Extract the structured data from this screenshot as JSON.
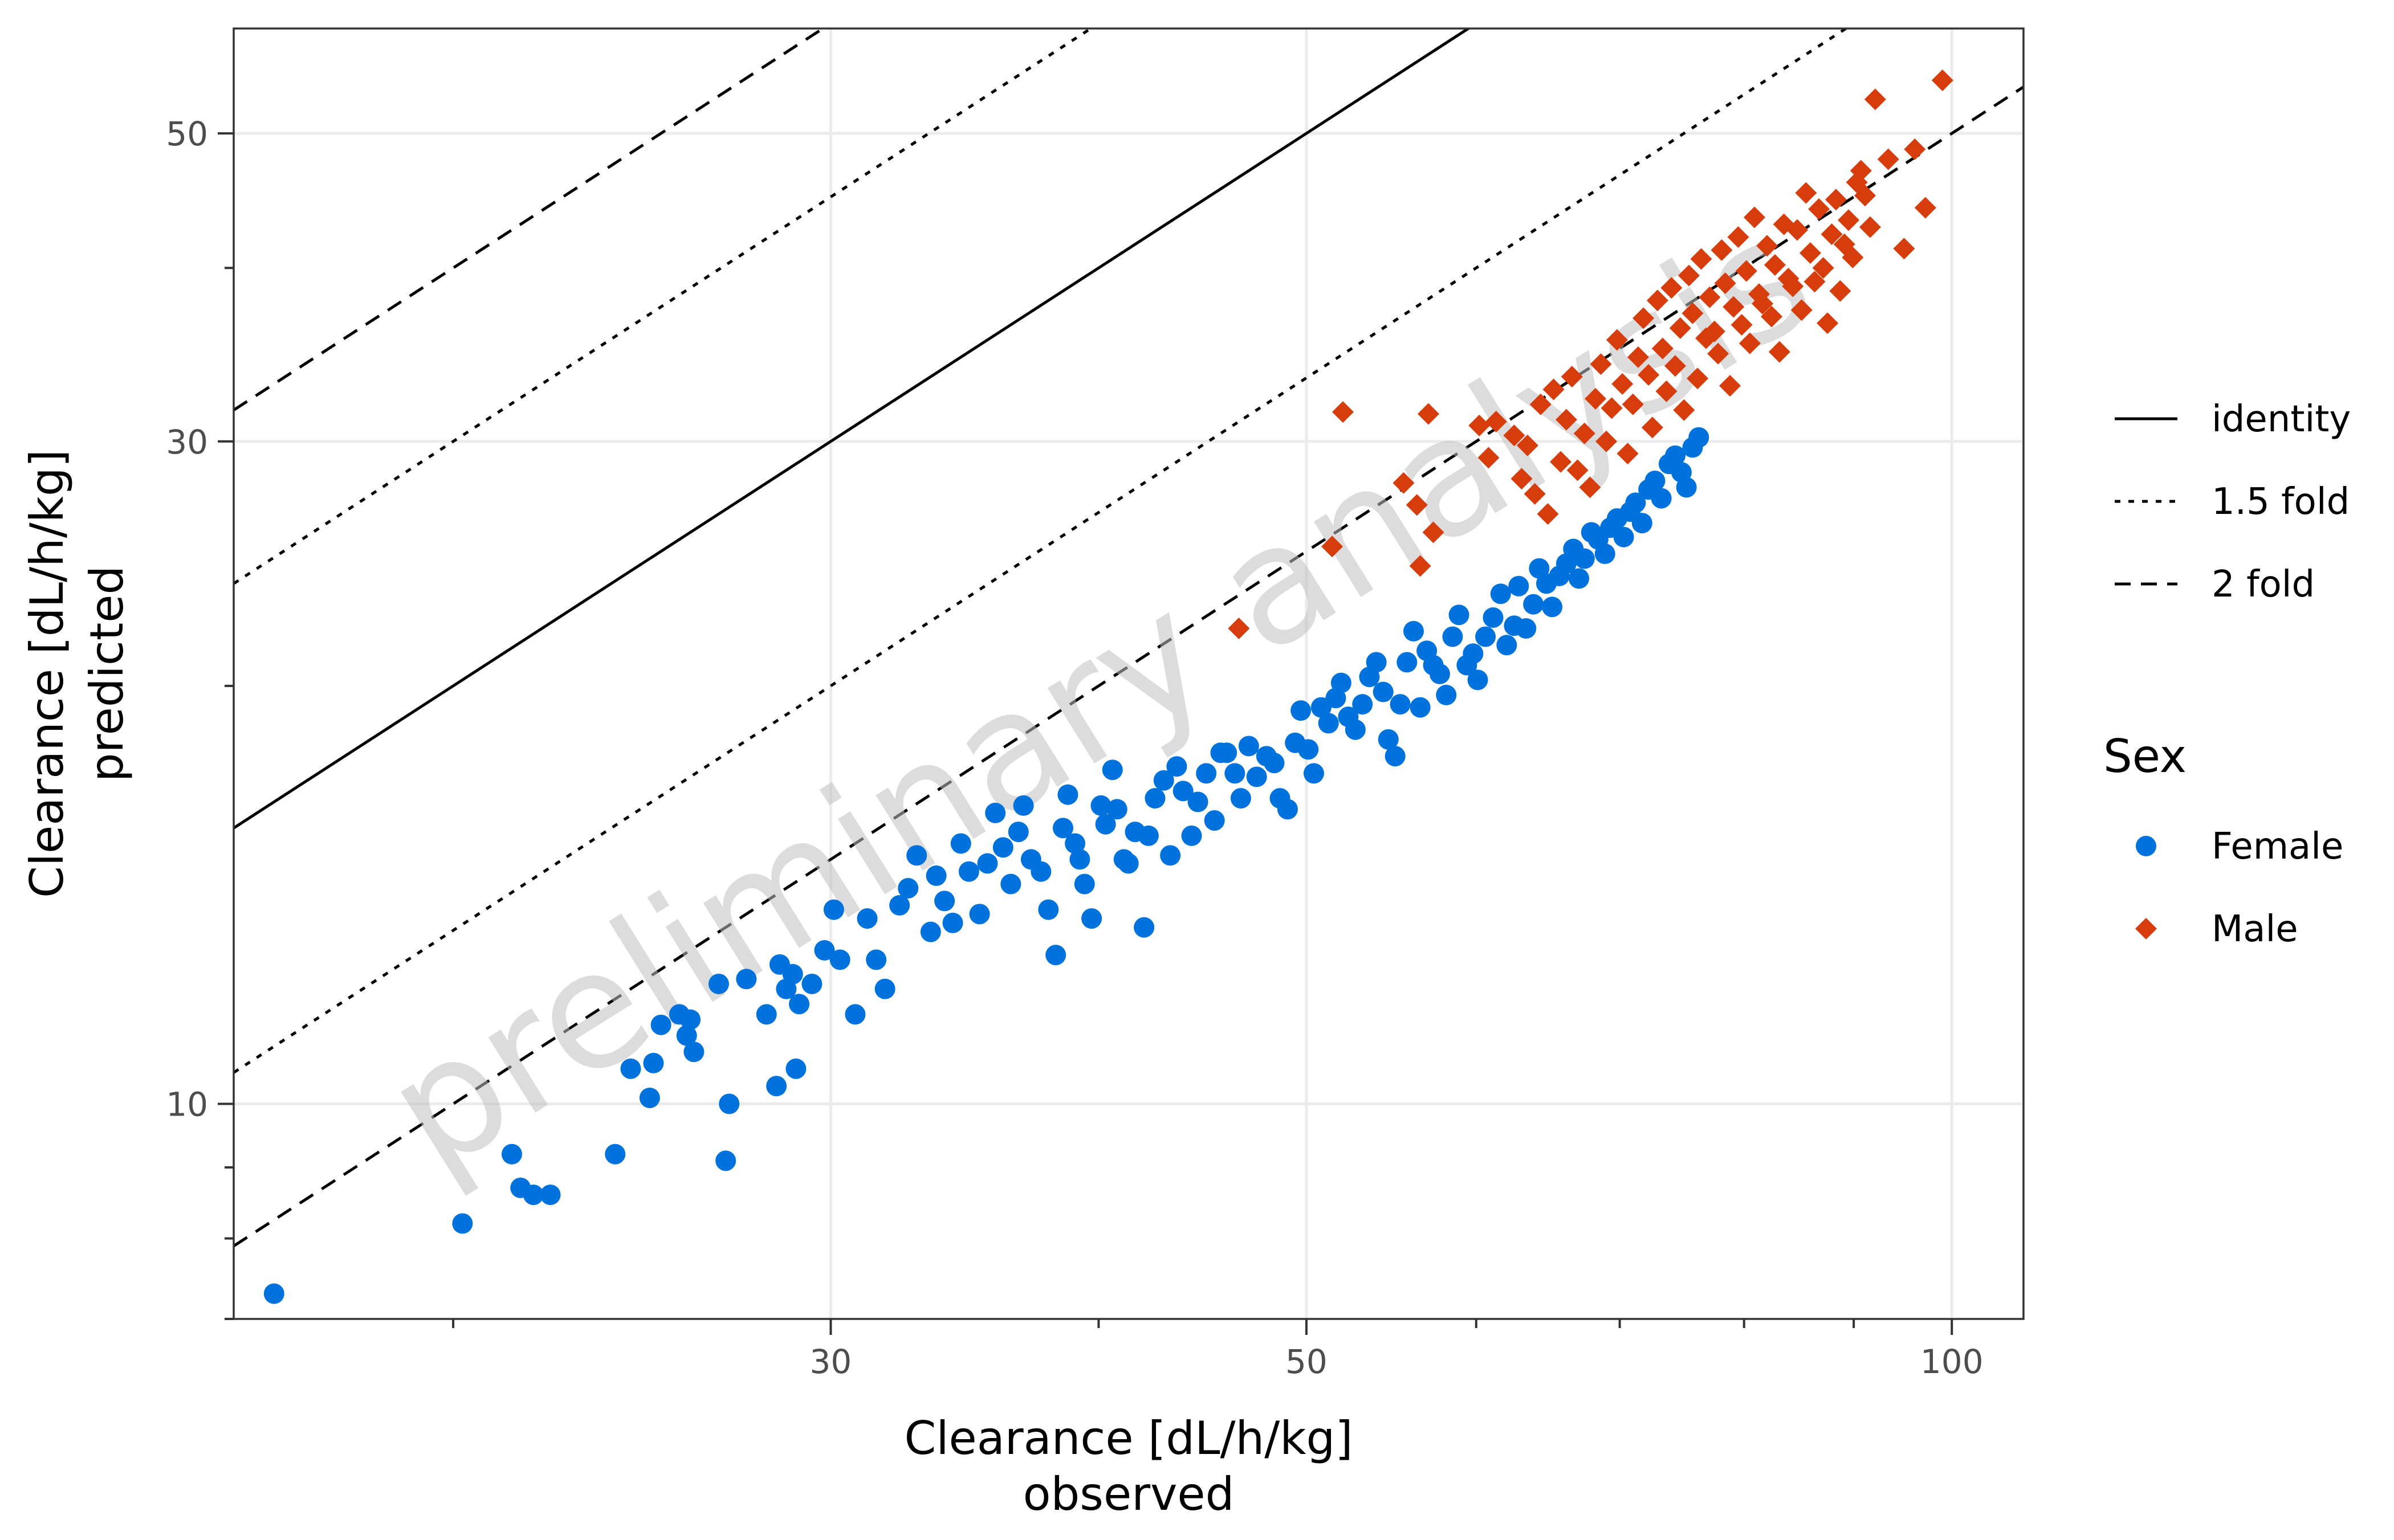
{
  "chart_data": {
    "type": "scatter",
    "xlabel_lines": [
      "Clearance [dL/h/kg]",
      "observed"
    ],
    "ylabel_lines": [
      "Clearance [dL/h/kg]",
      "predicted"
    ],
    "x_scale": "log",
    "y_scale": "log",
    "xlim": [
      15.8,
      108
    ],
    "ylim": [
      7.0,
      59.5
    ],
    "x_major_ticks": [
      30,
      50,
      100
    ],
    "x_tick_labels": [
      "30",
      "50",
      "100"
    ],
    "x_minor_ticks": [
      20,
      40,
      60,
      70,
      80,
      90
    ],
    "y_major_ticks": [
      10,
      30,
      50
    ],
    "y_tick_labels": [
      "10",
      "30",
      "50"
    ],
    "y_minor_ticks": [
      7,
      8,
      9,
      20,
      40
    ],
    "grid": true,
    "watermark": "preliminary analysis",
    "reference_lines": [
      {
        "name": "identity",
        "style": "solid",
        "ratio": 1
      },
      {
        "name": "1.5 fold",
        "style": "dotted",
        "ratio": 1.5
      },
      {
        "name": "2 fold",
        "style": "dashed",
        "ratio": 2
      }
    ],
    "legend_title": "Sex",
    "legend_placement": "right",
    "series": [
      {
        "name": "Female",
        "marker": "circle",
        "color": "#0072DD",
        "points": [
          [
            16.5,
            7.3
          ],
          [
            20.2,
            8.2
          ],
          [
            21.3,
            9.2
          ],
          [
            21.5,
            8.7
          ],
          [
            21.8,
            8.6
          ],
          [
            22.2,
            8.6
          ],
          [
            23.8,
            9.2
          ],
          [
            24.2,
            10.6
          ],
          [
            24.7,
            10.1
          ],
          [
            24.8,
            10.7
          ],
          [
            25.0,
            11.4
          ],
          [
            25.5,
            11.6
          ],
          [
            25.7,
            11.2
          ],
          [
            25.8,
            11.5
          ],
          [
            25.9,
            10.9
          ],
          [
            26.6,
            12.2
          ],
          [
            26.9,
            10.0
          ],
          [
            26.8,
            9.1
          ],
          [
            27.4,
            12.3
          ],
          [
            28.0,
            11.6
          ],
          [
            28.4,
            12.6
          ],
          [
            28.6,
            12.1
          ],
          [
            28.8,
            12.4
          ],
          [
            28.3,
            10.3
          ],
          [
            28.9,
            10.6
          ],
          [
            29.0,
            11.8
          ],
          [
            29.4,
            12.2
          ],
          [
            29.8,
            12.9
          ],
          [
            30.1,
            13.8
          ],
          [
            30.3,
            12.7
          ],
          [
            30.8,
            11.6
          ],
          [
            31.2,
            13.6
          ],
          [
            31.5,
            12.7
          ],
          [
            31.8,
            12.1
          ],
          [
            32.3,
            13.9
          ],
          [
            32.6,
            14.3
          ],
          [
            32.9,
            15.1
          ],
          [
            33.4,
            13.3
          ],
          [
            33.6,
            14.6
          ],
          [
            33.9,
            14.0
          ],
          [
            34.2,
            13.5
          ],
          [
            34.5,
            15.4
          ],
          [
            34.8,
            14.7
          ],
          [
            35.2,
            13.7
          ],
          [
            35.5,
            14.9
          ],
          [
            35.8,
            16.2
          ],
          [
            36.1,
            15.3
          ],
          [
            36.4,
            14.4
          ],
          [
            36.7,
            15.7
          ],
          [
            36.9,
            16.4
          ],
          [
            37.2,
            15.0
          ],
          [
            37.6,
            14.7
          ],
          [
            37.9,
            13.8
          ],
          [
            38.2,
            12.8
          ],
          [
            38.5,
            15.8
          ],
          [
            38.7,
            16.7
          ],
          [
            39.0,
            15.4
          ],
          [
            39.2,
            15.0
          ],
          [
            39.4,
            14.4
          ],
          [
            39.7,
            13.6
          ],
          [
            40.1,
            16.4
          ],
          [
            40.3,
            15.9
          ],
          [
            40.6,
            17.4
          ],
          [
            40.8,
            16.3
          ],
          [
            41.1,
            15.0
          ],
          [
            41.3,
            14.9
          ],
          [
            41.6,
            15.7
          ],
          [
            42.0,
            13.4
          ],
          [
            42.2,
            15.6
          ],
          [
            42.5,
            16.6
          ],
          [
            42.9,
            17.1
          ],
          [
            43.2,
            15.1
          ],
          [
            43.5,
            17.5
          ],
          [
            43.8,
            16.8
          ],
          [
            44.2,
            15.6
          ],
          [
            44.5,
            16.5
          ],
          [
            44.9,
            17.3
          ],
          [
            45.3,
            16.0
          ],
          [
            45.6,
            17.9
          ],
          [
            45.9,
            17.9
          ],
          [
            46.3,
            17.3
          ],
          [
            46.6,
            16.6
          ],
          [
            47.0,
            18.1
          ],
          [
            47.4,
            17.2
          ],
          [
            47.9,
            17.8
          ],
          [
            48.3,
            17.6
          ],
          [
            48.6,
            16.6
          ],
          [
            49.0,
            16.3
          ],
          [
            49.4,
            18.2
          ],
          [
            49.7,
            19.2
          ],
          [
            50.1,
            18.0
          ],
          [
            50.4,
            17.3
          ],
          [
            50.8,
            19.3
          ],
          [
            51.2,
            18.8
          ],
          [
            51.6,
            19.6
          ],
          [
            51.9,
            20.1
          ],
          [
            52.3,
            19.0
          ],
          [
            52.7,
            18.6
          ],
          [
            53.1,
            19.4
          ],
          [
            53.5,
            20.3
          ],
          [
            53.9,
            20.8
          ],
          [
            54.3,
            19.8
          ],
          [
            54.6,
            18.3
          ],
          [
            55.0,
            17.8
          ],
          [
            55.3,
            19.4
          ],
          [
            55.7,
            20.8
          ],
          [
            56.1,
            21.9
          ],
          [
            56.5,
            19.3
          ],
          [
            56.9,
            21.2
          ],
          [
            57.3,
            20.7
          ],
          [
            57.7,
            20.4
          ],
          [
            58.1,
            19.7
          ],
          [
            58.5,
            21.7
          ],
          [
            58.9,
            22.5
          ],
          [
            59.4,
            20.7
          ],
          [
            59.8,
            21.1
          ],
          [
            60.1,
            20.2
          ],
          [
            60.6,
            21.7
          ],
          [
            61.1,
            22.4
          ],
          [
            61.6,
            23.3
          ],
          [
            62.0,
            21.4
          ],
          [
            62.5,
            22.1
          ],
          [
            62.8,
            23.6
          ],
          [
            63.3,
            22.0
          ],
          [
            63.8,
            22.9
          ],
          [
            64.2,
            24.3
          ],
          [
            64.7,
            23.7
          ],
          [
            65.1,
            22.8
          ],
          [
            65.6,
            24.0
          ],
          [
            66.1,
            24.5
          ],
          [
            66.6,
            25.1
          ],
          [
            67.0,
            23.9
          ],
          [
            67.4,
            24.7
          ],
          [
            67.9,
            25.8
          ],
          [
            68.4,
            25.5
          ],
          [
            68.9,
            24.9
          ],
          [
            69.3,
            26.0
          ],
          [
            69.8,
            26.4
          ],
          [
            70.3,
            25.6
          ],
          [
            70.8,
            26.7
          ],
          [
            71.2,
            27.1
          ],
          [
            71.7,
            26.2
          ],
          [
            72.2,
            27.7
          ],
          [
            72.7,
            28.1
          ],
          [
            73.2,
            27.3
          ],
          [
            73.8,
            28.9
          ],
          [
            74.3,
            29.3
          ],
          [
            74.8,
            28.5
          ],
          [
            75.2,
            27.8
          ],
          [
            75.7,
            29.7
          ],
          [
            76.2,
            30.2
          ]
        ],
        "points_note": "Female points follow roughly predicted = observed/2 with moderate scatter; coordinates above are approximate readings of the cluster."
      },
      {
        "name": "Male",
        "marker": "diamond",
        "color": "#D73C0C",
        "points": [
          [
            46.5,
            22.0
          ],
          [
            51.4,
            25.2
          ],
          [
            52.0,
            31.5
          ],
          [
            55.5,
            28.0
          ],
          [
            56.5,
            24.4
          ],
          [
            56.3,
            27.0
          ],
          [
            57.0,
            31.4
          ],
          [
            57.3,
            25.8
          ],
          [
            60.2,
            30.8
          ],
          [
            60.8,
            29.2
          ],
          [
            61.3,
            31.0
          ],
          [
            62.5,
            30.3
          ],
          [
            63.0,
            28.2
          ],
          [
            63.4,
            29.8
          ],
          [
            63.9,
            27.5
          ],
          [
            64.3,
            31.9
          ],
          [
            64.8,
            26.6
          ],
          [
            65.2,
            32.7
          ],
          [
            65.7,
            29.0
          ],
          [
            66.1,
            31.1
          ],
          [
            66.5,
            33.4
          ],
          [
            66.9,
            28.6
          ],
          [
            67.4,
            30.4
          ],
          [
            67.8,
            27.8
          ],
          [
            68.2,
            32.2
          ],
          [
            68.6,
            34.1
          ],
          [
            69.0,
            30.0
          ],
          [
            69.4,
            31.7
          ],
          [
            69.8,
            35.5
          ],
          [
            70.2,
            33.0
          ],
          [
            70.6,
            29.4
          ],
          [
            71.0,
            31.9
          ],
          [
            71.4,
            34.5
          ],
          [
            71.8,
            36.8
          ],
          [
            72.2,
            33.5
          ],
          [
            72.5,
            30.7
          ],
          [
            72.9,
            37.9
          ],
          [
            73.3,
            35.0
          ],
          [
            73.6,
            32.6
          ],
          [
            74.0,
            38.7
          ],
          [
            74.3,
            34.0
          ],
          [
            74.7,
            36.2
          ],
          [
            75.0,
            31.6
          ],
          [
            75.4,
            39.5
          ],
          [
            75.7,
            37.1
          ],
          [
            76.1,
            33.3
          ],
          [
            76.4,
            40.6
          ],
          [
            76.8,
            35.6
          ],
          [
            77.1,
            38.1
          ],
          [
            77.5,
            36.0
          ],
          [
            77.8,
            34.7
          ],
          [
            78.1,
            41.2
          ],
          [
            78.4,
            39.0
          ],
          [
            78.8,
            32.9
          ],
          [
            79.1,
            37.5
          ],
          [
            79.5,
            42.1
          ],
          [
            79.8,
            36.4
          ],
          [
            80.2,
            39.8
          ],
          [
            80.5,
            35.3
          ],
          [
            80.9,
            43.5
          ],
          [
            81.3,
            38.3
          ],
          [
            81.6,
            37.7
          ],
          [
            82.0,
            41.5
          ],
          [
            82.4,
            36.9
          ],
          [
            82.7,
            40.2
          ],
          [
            83.1,
            34.8
          ],
          [
            83.5,
            43.0
          ],
          [
            83.9,
            39.3
          ],
          [
            84.3,
            38.8
          ],
          [
            84.7,
            42.6
          ],
          [
            85.1,
            37.3
          ],
          [
            85.5,
            45.3
          ],
          [
            85.9,
            41.0
          ],
          [
            86.3,
            39.1
          ],
          [
            86.7,
            44.1
          ],
          [
            87.1,
            40.0
          ],
          [
            87.5,
            36.5
          ],
          [
            87.9,
            42.3
          ],
          [
            88.3,
            44.8
          ],
          [
            88.7,
            38.5
          ],
          [
            89.1,
            41.6
          ],
          [
            89.5,
            43.3
          ],
          [
            89.9,
            40.7
          ],
          [
            90.3,
            46.1
          ],
          [
            90.7,
            47.0
          ],
          [
            91.1,
            45.1
          ],
          [
            91.6,
            42.8
          ],
          [
            92.1,
            52.9
          ],
          [
            93.4,
            47.9
          ],
          [
            95.0,
            41.3
          ],
          [
            96.1,
            48.7
          ],
          [
            97.2,
            44.2
          ],
          [
            99.0,
            54.6
          ]
        ],
        "points_note": "Male points cluster between observed 55 and 100, predicted 25 to 55; coordinates are approximate readings."
      }
    ]
  }
}
